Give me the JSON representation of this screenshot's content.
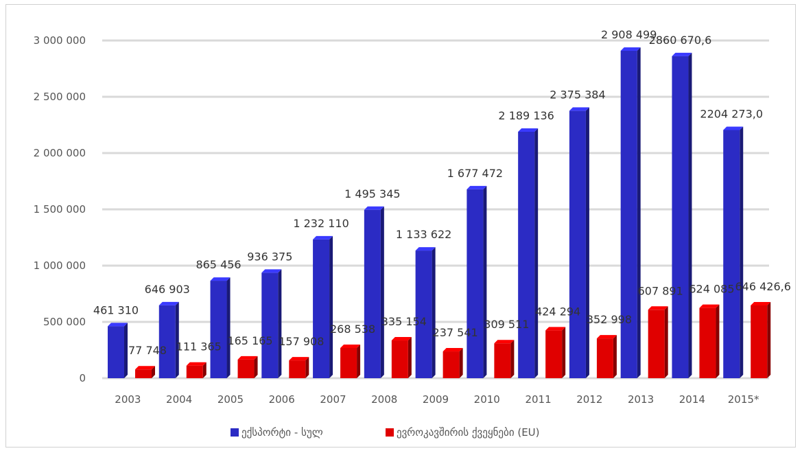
{
  "chart_data": {
    "type": "bar",
    "categories": [
      "2003",
      "2004",
      "2005",
      "2006",
      "2007",
      "2008",
      "2009",
      "2010",
      "2011",
      "2012",
      "2013",
      "2014",
      "2015*"
    ],
    "series": [
      {
        "name": "ექსპორტი - სულ",
        "color": "#2b2bc4",
        "values": [
          461310,
          646903,
          865456,
          936375,
          1232110,
          1495345,
          1133622,
          1677472,
          2189136,
          2375384,
          2908499,
          2860670.6,
          2204273.0
        ],
        "labels": [
          "461 310",
          "646 903",
          "865 456",
          "936 375",
          "1 232 110",
          "1 495 345",
          "1 133 622",
          "1 677 472",
          "2 189 136",
          "2 375 384",
          "2 908 499",
          "2860 670,6",
          "2204 273,0"
        ]
      },
      {
        "name": "ევროკავშირის ქვეყნები (EU)",
        "color": "#e00000",
        "values": [
          77748,
          111365,
          165165,
          157908,
          268538,
          335154,
          237541,
          309511,
          424294,
          352998,
          607891,
          624085,
          646426.6
        ],
        "labels": [
          "77 748",
          "111 365",
          "165 165",
          "157 908",
          "268 538",
          "335 154",
          "237 541",
          "309 511",
          "424 294",
          "352 998",
          "607 891",
          "624 085",
          "646 426,6"
        ]
      }
    ],
    "ylim": [
      0,
      3000000
    ],
    "yticks": [
      0,
      500000,
      1000000,
      1500000,
      2000000,
      2500000,
      3000000
    ],
    "ytick_labels": [
      "0",
      "500 000",
      "1 000 000",
      "1 500 000",
      "2 000 000",
      "2 500 000",
      "3 000 000"
    ],
    "legend_position": "bottom",
    "grid": true
  }
}
